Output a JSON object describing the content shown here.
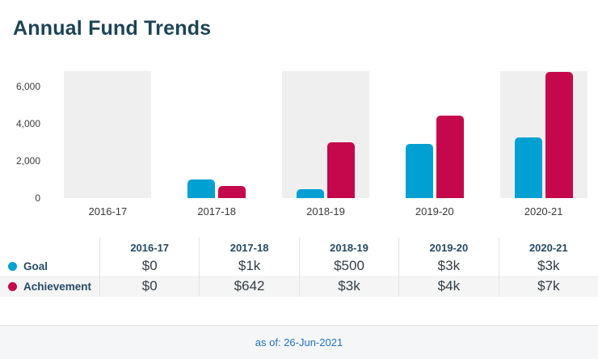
{
  "page": {
    "title": "Annual Fund Trends"
  },
  "colors": {
    "goal": "#00A0D2",
    "achievement": "#C5084B",
    "band": "#efefef",
    "alt_row": "#f5f5f5",
    "navy_text": "#264a63",
    "title_text": "#1d4355",
    "footer_text": "#2273c3"
  },
  "chart_data": {
    "type": "bar",
    "title": "Annual Fund Trends",
    "categories": [
      "2016-17",
      "2017-18",
      "2018-19",
      "2019-20",
      "2020-21"
    ],
    "series": [
      {
        "name": "Goal",
        "color": "#00A0D2",
        "values": [
          0,
          1000,
          500,
          2900,
          3250
        ],
        "display": [
          "$0",
          "$1k",
          "$500",
          "$3k",
          "$3k"
        ]
      },
      {
        "name": "Achievement",
        "color": "#C5084B",
        "values": [
          0,
          642,
          3000,
          4450,
          6800
        ],
        "display": [
          "$0",
          "$642",
          "$3k",
          "$4k",
          "$7k"
        ]
      }
    ],
    "y_ticks": [
      0,
      2000,
      4000,
      6000
    ],
    "y_tick_labels": [
      "0",
      "2,000",
      "4,000",
      "6,000"
    ],
    "ylim": [
      0,
      6830
    ],
    "grid": false,
    "band_columns": [
      0,
      2,
      4
    ],
    "legend_position": "table-rows-left"
  },
  "table": {
    "col_headers": [
      "2016-17",
      "2017-18",
      "2018-19",
      "2019-20",
      "2020-21"
    ],
    "rows": [
      {
        "label": "Goal",
        "marker_color": "#00A0D2",
        "values": [
          "$0",
          "$1k",
          "$500",
          "$3k",
          "$3k"
        ]
      },
      {
        "label": "Achievement",
        "marker_color": "#C5084B",
        "values": [
          "$0",
          "$642",
          "$3k",
          "$4k",
          "$7k"
        ]
      }
    ]
  },
  "footer": {
    "text": "as of: 26-Jun-2021"
  }
}
